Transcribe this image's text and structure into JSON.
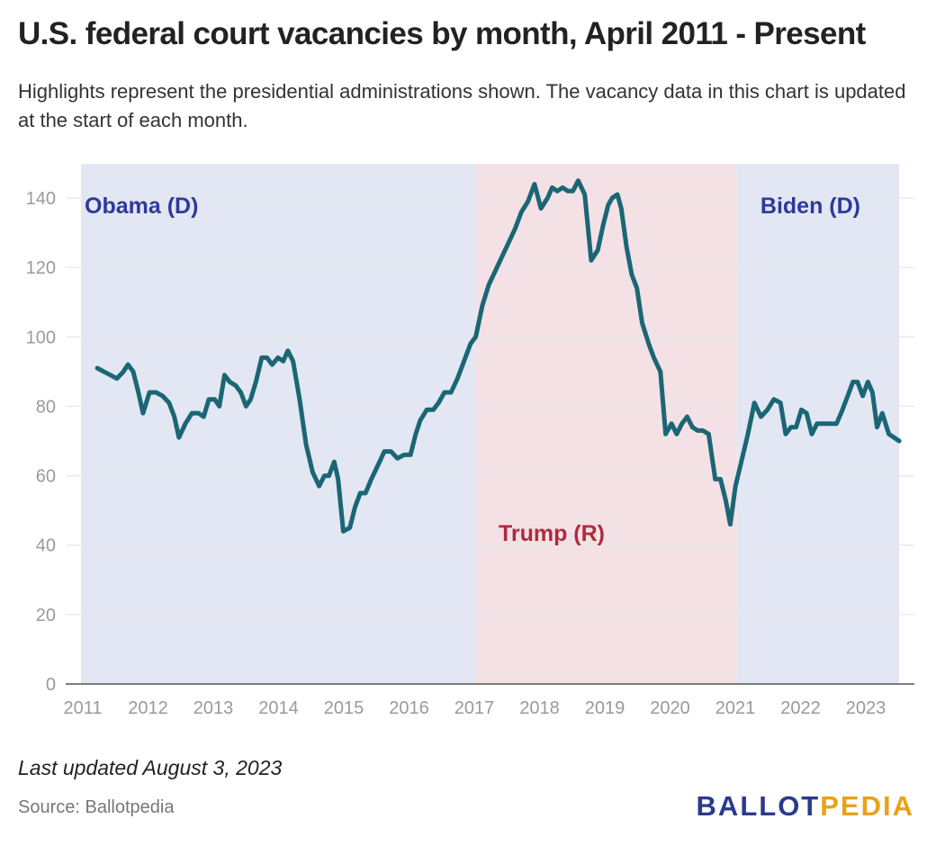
{
  "header": {
    "title": "U.S. federal court vacancies by month, April 2011 - Present",
    "subtitle": "Highlights represent the presidential administrations shown. The vacancy data in this chart is updated at the start of each month."
  },
  "footer": {
    "updated": "Last updated August 3, 2023",
    "source": "Source: Ballotpedia",
    "logo_part1": "BALLOT",
    "logo_part2": "PEDIA"
  },
  "colors": {
    "line": "#1b6675",
    "democrat_band": "#e3e6f3",
    "republican_band": "#f3e1e5",
    "democrat_label": "#2b3a9c",
    "republican_label": "#b02a3d"
  },
  "chart_data": {
    "type": "line",
    "title": "U.S. federal court vacancies by month, April 2011 - Present",
    "xlabel": "",
    "ylabel": "",
    "xlim": [
      2011,
      2023.75
    ],
    "ylim": [
      0,
      145
    ],
    "grid": true,
    "y_ticks": [
      0,
      20,
      40,
      60,
      80,
      100,
      120,
      140
    ],
    "x_ticks": [
      "2011",
      "2012",
      "2013",
      "2014",
      "2015",
      "2016",
      "2017",
      "2018",
      "2019",
      "2020",
      "2021",
      "2022",
      "2023"
    ],
    "administrations": [
      {
        "label": "Obama (D)",
        "party": "D",
        "start": 2011,
        "end": 2017.05
      },
      {
        "label": "Trump (R)",
        "party": "R",
        "start": 2017.05,
        "end": 2021.05
      },
      {
        "label": "Biden (D)",
        "party": "D",
        "start": 2021.05,
        "end": 2023.54
      }
    ],
    "series": [
      {
        "x": [
          2011.25,
          2011.35,
          2011.45,
          2011.55,
          2011.65,
          2011.72,
          2011.8,
          2011.88,
          2011.95,
          2012.05,
          2012.15,
          2012.25,
          2012.35,
          2012.43,
          2012.5,
          2012.6,
          2012.7,
          2012.8,
          2012.88,
          2012.96,
          2013.05,
          2013.12,
          2013.2,
          2013.28,
          2013.37,
          2013.45,
          2013.53,
          2013.6,
          2013.68,
          2013.77,
          2013.85,
          2013.93,
          2014.02,
          2014.1,
          2014.17,
          2014.25,
          2014.35,
          2014.45,
          2014.55,
          2014.65,
          2014.73,
          2014.8,
          2014.88,
          2014.94,
          2015.02,
          2015.12,
          2015.2,
          2015.28,
          2015.36,
          2015.45,
          2015.55,
          2015.65,
          2015.75,
          2015.85,
          2015.95,
          2016.05,
          2016.13,
          2016.2,
          2016.3,
          2016.4,
          2016.48,
          2016.57,
          2016.67,
          2016.77,
          2016.87,
          2016.97,
          2017.05,
          2017.15,
          2017.25,
          2017.35,
          2017.45,
          2017.55,
          2017.65,
          2017.75,
          2017.85,
          2017.95,
          2018.05,
          2018.15,
          2018.22,
          2018.3,
          2018.38,
          2018.46,
          2018.54,
          2018.62,
          2018.72,
          2018.82,
          2018.92,
          2019.0,
          2019.08,
          2019.14,
          2019.22,
          2019.28,
          2019.36,
          2019.44,
          2019.52,
          2019.6,
          2019.7,
          2019.78,
          2019.88,
          2019.96,
          2020.05,
          2020.13,
          2020.21,
          2020.29,
          2020.37,
          2020.45,
          2020.53,
          2020.62,
          2020.72,
          2020.8,
          2020.88,
          2020.95,
          2021.03,
          2021.12,
          2021.22,
          2021.32,
          2021.42,
          2021.52,
          2021.62,
          2021.72,
          2021.8,
          2021.88,
          2021.96,
          2022.04,
          2022.12,
          2022.2,
          2022.28,
          2022.38,
          2022.48,
          2022.58,
          2022.67,
          2022.75,
          2022.83,
          2022.9,
          2022.98,
          2023.06,
          2023.13,
          2023.2,
          2023.28,
          2023.38,
          2023.46,
          2023.54
        ],
        "values": [
          91,
          90,
          89,
          88,
          90,
          92,
          90,
          84,
          78,
          84,
          84,
          83,
          81,
          77,
          71,
          75,
          78,
          78,
          77,
          82,
          82,
          80,
          89,
          87,
          86,
          84,
          80,
          82,
          87,
          94,
          94,
          92,
          94,
          93,
          96,
          93,
          82,
          69,
          61,
          57,
          60,
          60,
          64,
          59,
          44,
          45,
          51,
          55,
          55,
          59,
          63,
          67,
          67,
          65,
          66,
          66,
          72,
          76,
          79,
          79,
          81,
          84,
          84,
          88,
          93,
          98,
          100,
          109,
          115,
          119,
          123,
          127,
          131,
          136,
          139,
          144,
          137,
          140,
          143,
          142,
          143,
          142,
          142,
          145,
          141,
          122,
          125,
          132,
          138,
          140,
          141,
          137,
          126,
          118,
          114,
          104,
          98,
          94,
          90,
          72,
          75,
          72,
          75,
          77,
          74,
          73,
          73,
          72,
          59,
          59,
          53,
          46,
          57,
          64,
          72,
          81,
          77,
          79,
          82,
          81,
          72,
          74,
          74,
          79,
          78,
          72,
          75,
          75,
          75,
          75,
          79,
          83,
          87,
          87,
          83,
          87,
          84,
          74,
          78,
          72,
          71,
          70
        ]
      }
    ]
  }
}
